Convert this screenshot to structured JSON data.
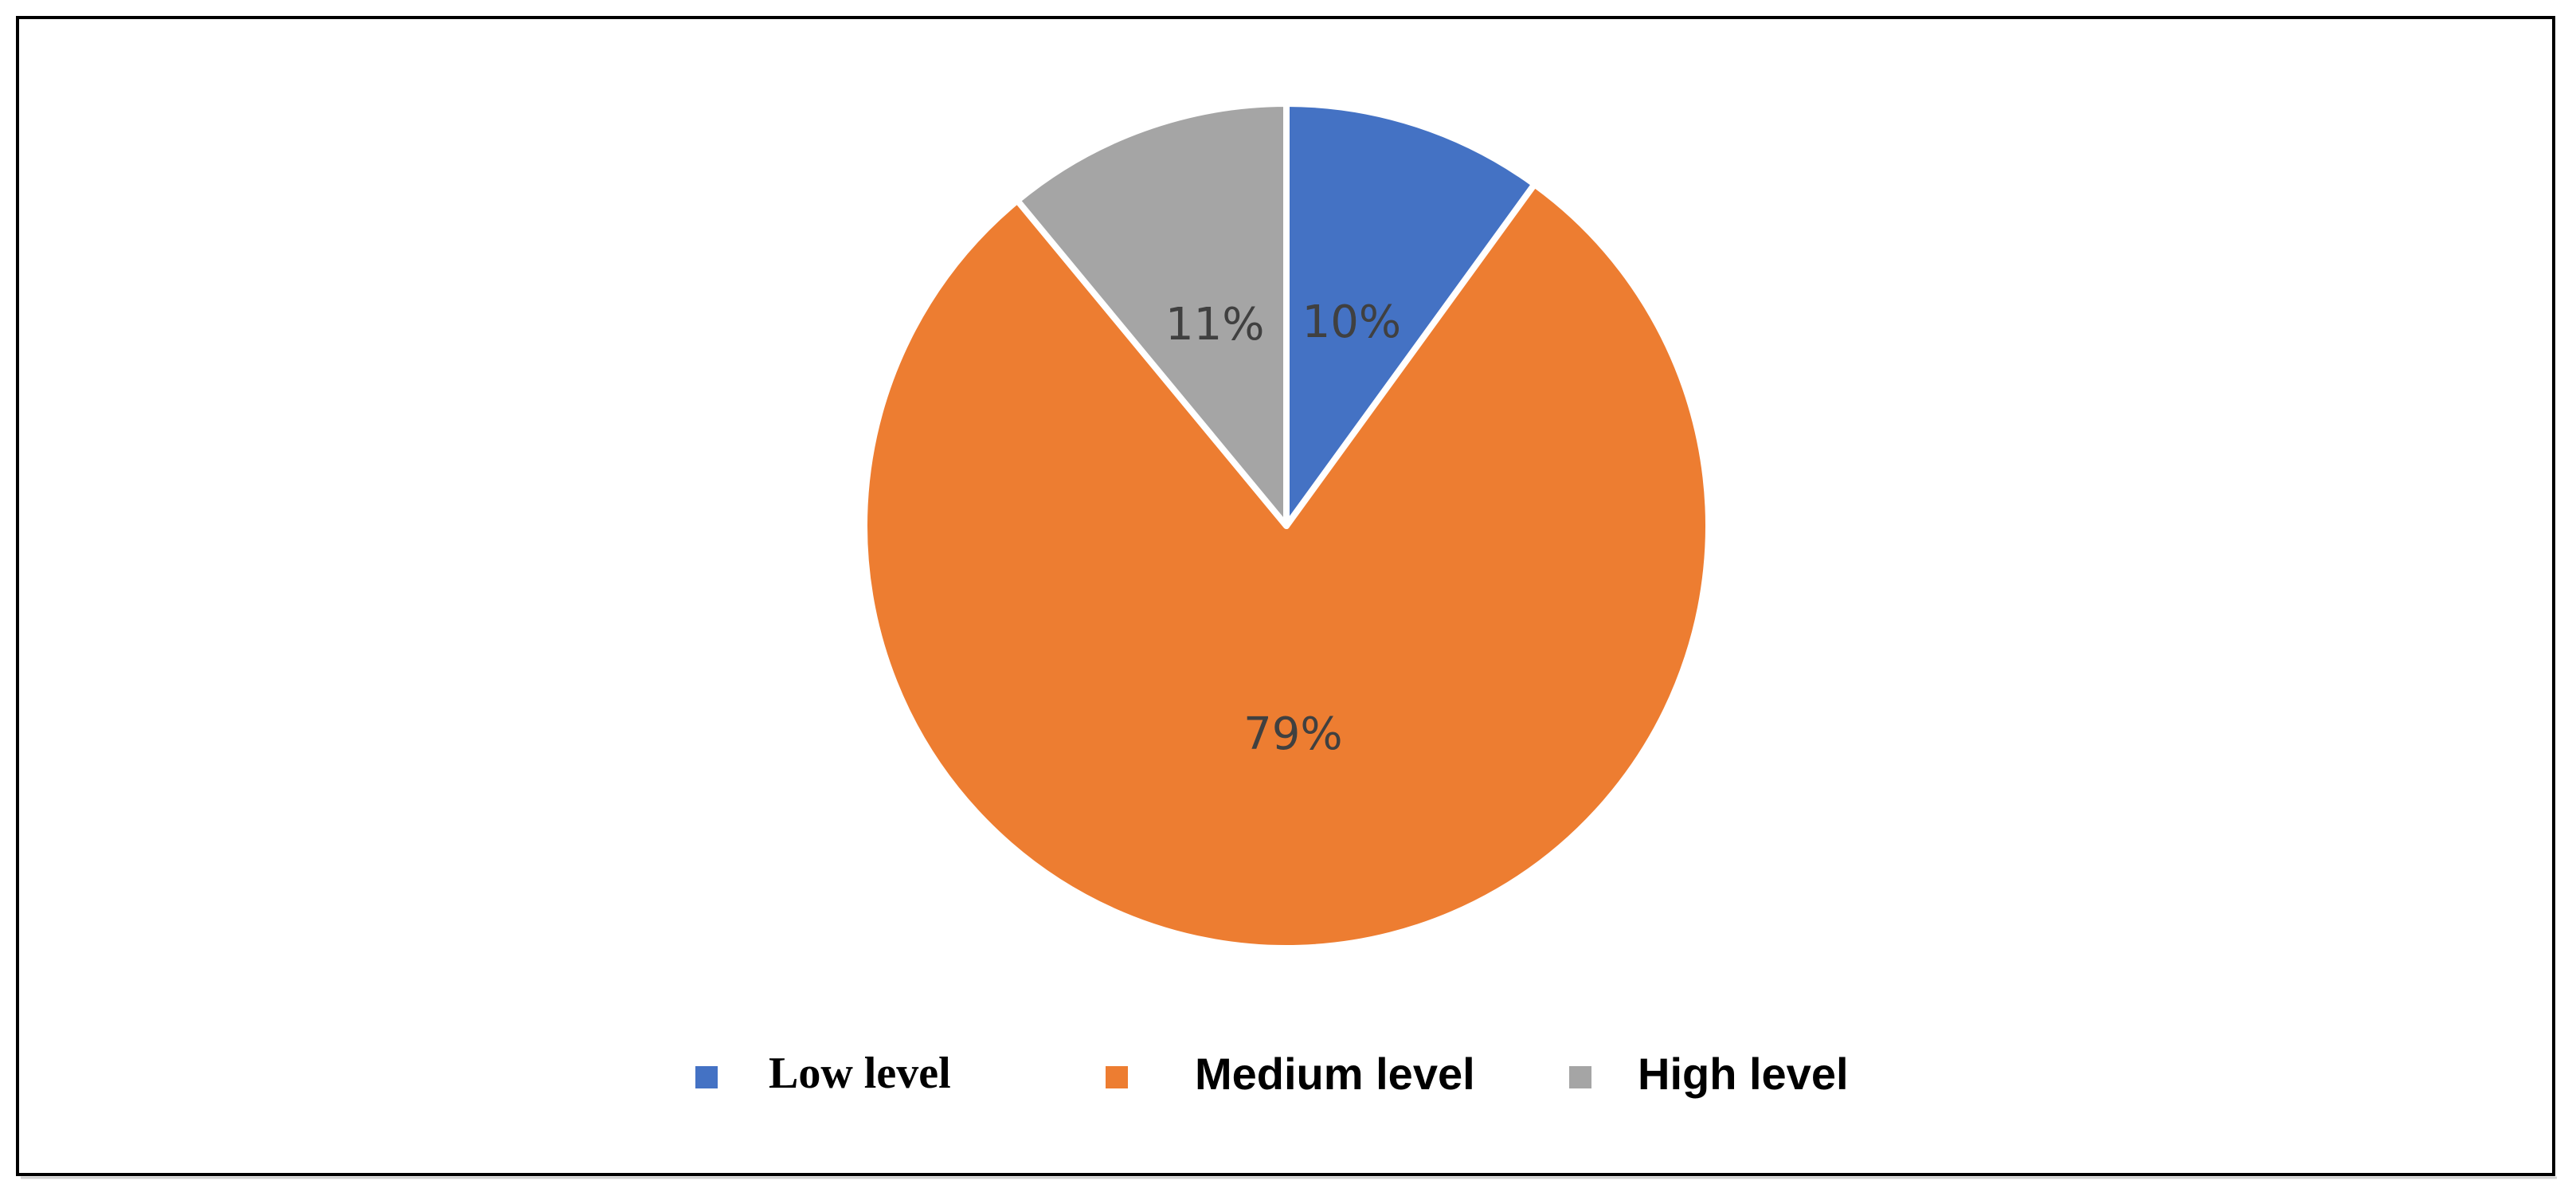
{
  "chart_data": {
    "type": "pie",
    "categories": [
      "Low level",
      "Medium level",
      "High level"
    ],
    "values": [
      10,
      79,
      11
    ],
    "value_labels": [
      "10%",
      "79%",
      "11%"
    ],
    "colors": [
      "#4472c4",
      "#ed7d31",
      "#a5a5a5"
    ]
  }
}
